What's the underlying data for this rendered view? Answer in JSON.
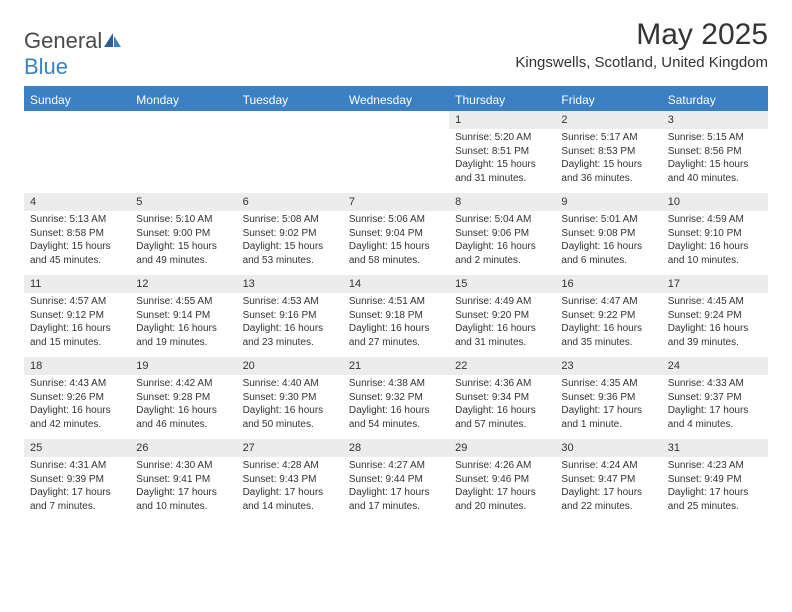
{
  "brand": {
    "name1": "General",
    "name2": "Blue"
  },
  "title": "May 2025",
  "location": "Kingswells, Scotland, United Kingdom",
  "colors": {
    "accent": "#3b7fc4",
    "daynum_bg": "#ececec",
    "text": "#333333",
    "background": "#ffffff"
  },
  "day_names": [
    "Sunday",
    "Monday",
    "Tuesday",
    "Wednesday",
    "Thursday",
    "Friday",
    "Saturday"
  ],
  "weeks": [
    {
      "nums": [
        "",
        "",
        "",
        "",
        "1",
        "2",
        "3"
      ],
      "sunrise": [
        "",
        "",
        "",
        "",
        "Sunrise: 5:20 AM",
        "Sunrise: 5:17 AM",
        "Sunrise: 5:15 AM"
      ],
      "sunset": [
        "",
        "",
        "",
        "",
        "Sunset: 8:51 PM",
        "Sunset: 8:53 PM",
        "Sunset: 8:56 PM"
      ],
      "day1": [
        "",
        "",
        "",
        "",
        "Daylight: 15 hours",
        "Daylight: 15 hours",
        "Daylight: 15 hours"
      ],
      "day2": [
        "",
        "",
        "",
        "",
        "and 31 minutes.",
        "and 36 minutes.",
        "and 40 minutes."
      ]
    },
    {
      "nums": [
        "4",
        "5",
        "6",
        "7",
        "8",
        "9",
        "10"
      ],
      "sunrise": [
        "Sunrise: 5:13 AM",
        "Sunrise: 5:10 AM",
        "Sunrise: 5:08 AM",
        "Sunrise: 5:06 AM",
        "Sunrise: 5:04 AM",
        "Sunrise: 5:01 AM",
        "Sunrise: 4:59 AM"
      ],
      "sunset": [
        "Sunset: 8:58 PM",
        "Sunset: 9:00 PM",
        "Sunset: 9:02 PM",
        "Sunset: 9:04 PM",
        "Sunset: 9:06 PM",
        "Sunset: 9:08 PM",
        "Sunset: 9:10 PM"
      ],
      "day1": [
        "Daylight: 15 hours",
        "Daylight: 15 hours",
        "Daylight: 15 hours",
        "Daylight: 15 hours",
        "Daylight: 16 hours",
        "Daylight: 16 hours",
        "Daylight: 16 hours"
      ],
      "day2": [
        "and 45 minutes.",
        "and 49 minutes.",
        "and 53 minutes.",
        "and 58 minutes.",
        "and 2 minutes.",
        "and 6 minutes.",
        "and 10 minutes."
      ]
    },
    {
      "nums": [
        "11",
        "12",
        "13",
        "14",
        "15",
        "16",
        "17"
      ],
      "sunrise": [
        "Sunrise: 4:57 AM",
        "Sunrise: 4:55 AM",
        "Sunrise: 4:53 AM",
        "Sunrise: 4:51 AM",
        "Sunrise: 4:49 AM",
        "Sunrise: 4:47 AM",
        "Sunrise: 4:45 AM"
      ],
      "sunset": [
        "Sunset: 9:12 PM",
        "Sunset: 9:14 PM",
        "Sunset: 9:16 PM",
        "Sunset: 9:18 PM",
        "Sunset: 9:20 PM",
        "Sunset: 9:22 PM",
        "Sunset: 9:24 PM"
      ],
      "day1": [
        "Daylight: 16 hours",
        "Daylight: 16 hours",
        "Daylight: 16 hours",
        "Daylight: 16 hours",
        "Daylight: 16 hours",
        "Daylight: 16 hours",
        "Daylight: 16 hours"
      ],
      "day2": [
        "and 15 minutes.",
        "and 19 minutes.",
        "and 23 minutes.",
        "and 27 minutes.",
        "and 31 minutes.",
        "and 35 minutes.",
        "and 39 minutes."
      ]
    },
    {
      "nums": [
        "18",
        "19",
        "20",
        "21",
        "22",
        "23",
        "24"
      ],
      "sunrise": [
        "Sunrise: 4:43 AM",
        "Sunrise: 4:42 AM",
        "Sunrise: 4:40 AM",
        "Sunrise: 4:38 AM",
        "Sunrise: 4:36 AM",
        "Sunrise: 4:35 AM",
        "Sunrise: 4:33 AM"
      ],
      "sunset": [
        "Sunset: 9:26 PM",
        "Sunset: 9:28 PM",
        "Sunset: 9:30 PM",
        "Sunset: 9:32 PM",
        "Sunset: 9:34 PM",
        "Sunset: 9:36 PM",
        "Sunset: 9:37 PM"
      ],
      "day1": [
        "Daylight: 16 hours",
        "Daylight: 16 hours",
        "Daylight: 16 hours",
        "Daylight: 16 hours",
        "Daylight: 16 hours",
        "Daylight: 17 hours",
        "Daylight: 17 hours"
      ],
      "day2": [
        "and 42 minutes.",
        "and 46 minutes.",
        "and 50 minutes.",
        "and 54 minutes.",
        "and 57 minutes.",
        "and 1 minute.",
        "and 4 minutes."
      ]
    },
    {
      "nums": [
        "25",
        "26",
        "27",
        "28",
        "29",
        "30",
        "31"
      ],
      "sunrise": [
        "Sunrise: 4:31 AM",
        "Sunrise: 4:30 AM",
        "Sunrise: 4:28 AM",
        "Sunrise: 4:27 AM",
        "Sunrise: 4:26 AM",
        "Sunrise: 4:24 AM",
        "Sunrise: 4:23 AM"
      ],
      "sunset": [
        "Sunset: 9:39 PM",
        "Sunset: 9:41 PM",
        "Sunset: 9:43 PM",
        "Sunset: 9:44 PM",
        "Sunset: 9:46 PM",
        "Sunset: 9:47 PM",
        "Sunset: 9:49 PM"
      ],
      "day1": [
        "Daylight: 17 hours",
        "Daylight: 17 hours",
        "Daylight: 17 hours",
        "Daylight: 17 hours",
        "Daylight: 17 hours",
        "Daylight: 17 hours",
        "Daylight: 17 hours"
      ],
      "day2": [
        "and 7 minutes.",
        "and 10 minutes.",
        "and 14 minutes.",
        "and 17 minutes.",
        "and 20 minutes.",
        "and 22 minutes.",
        "and 25 minutes."
      ]
    }
  ]
}
